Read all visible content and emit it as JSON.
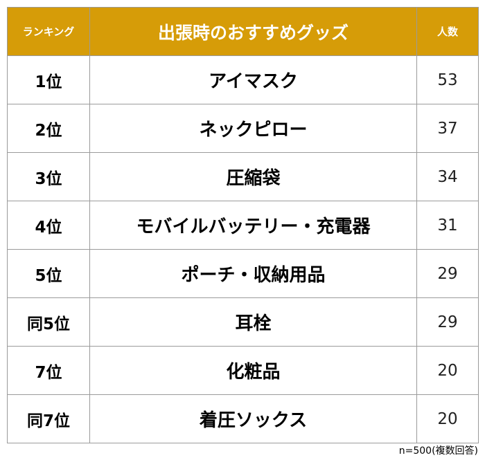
{
  "header": {
    "rank_label": "ランキング",
    "title": "出張時のおすすめグッズ",
    "count_label": "人数"
  },
  "rows": [
    {
      "rank": "1位",
      "item": "アイマスク",
      "count": "53"
    },
    {
      "rank": "2位",
      "item": "ネックピロー",
      "count": "37"
    },
    {
      "rank": "3位",
      "item": "圧縮袋",
      "count": "34"
    },
    {
      "rank": "4位",
      "item": "モバイルバッテリー・充電器",
      "count": "31"
    },
    {
      "rank": "5位",
      "item": "ポーチ・収納用品",
      "count": "29"
    },
    {
      "rank": "同5位",
      "item": "耳栓",
      "count": "29"
    },
    {
      "rank": "7位",
      "item": "化粧品",
      "count": "20"
    },
    {
      "rank": "同7位",
      "item": "着圧ソックス",
      "count": "20"
    }
  ],
  "footnote": "n=500(複数回答)",
  "colors": {
    "header_bg": "#d69c08",
    "header_text": "#ffffff",
    "border": "#9a9a9a"
  }
}
